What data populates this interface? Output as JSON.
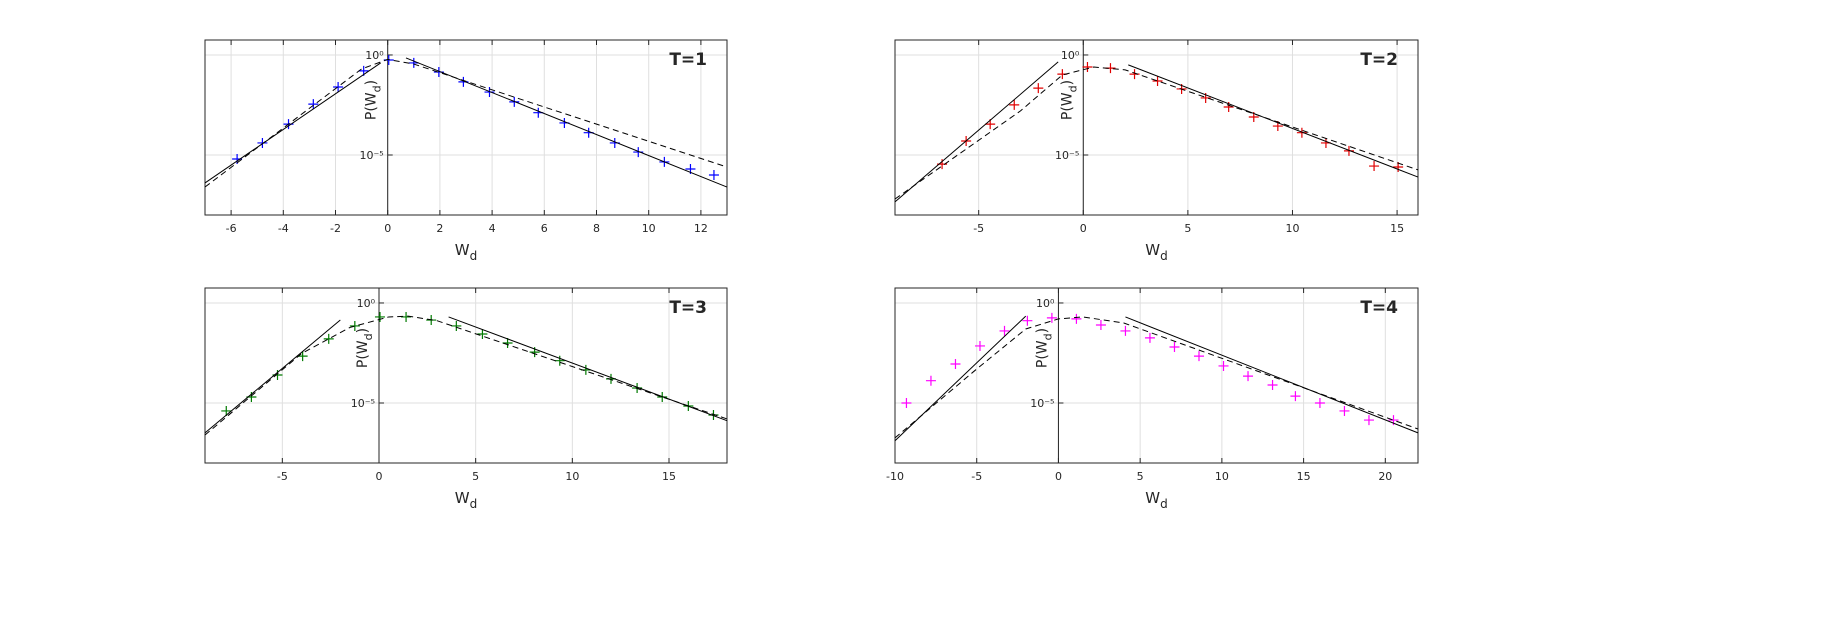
{
  "chart_data": [
    {
      "type": "line",
      "title": "T=1",
      "log_y": true,
      "grid": true,
      "xlabel": {
        "main": "W",
        "sub": "d"
      },
      "ylabel": {
        "pre": "P(W",
        "sub": "d",
        "post": ")"
      },
      "xlim": [
        -7,
        13
      ],
      "ylim": [
        1e-08,
        5.6
      ],
      "xticks": [
        -6,
        -4,
        -2,
        0,
        2,
        4,
        6,
        8,
        10,
        12
      ],
      "yticks": [
        {
          "value": 1,
          "label": "10⁰"
        },
        {
          "value": 1e-05,
          "label": "10⁻⁵"
        }
      ],
      "series": [
        {
          "style": "markers",
          "color": "#0000ff",
          "x": [
            -5.77,
            -4.8,
            -3.8,
            -2.85,
            -1.9,
            -0.92,
            0.04,
            1.0,
            1.96,
            2.9,
            3.9,
            4.85,
            5.77,
            6.77,
            7.7,
            8.7,
            9.6,
            10.6,
            11.6,
            12.5
          ],
          "values": [
            6.3e-06,
            4e-05,
            0.00035,
            0.0035,
            0.025,
            0.16,
            0.56,
            0.4,
            0.14,
            0.045,
            0.014,
            0.0045,
            0.0013,
            0.0004,
            0.00013,
            4e-05,
            1.4e-05,
            4.5e-06,
            2e-06,
            1e-06
          ]
        },
        {
          "style": "dashed",
          "color": "#000000",
          "x": [
            -7,
            -1,
            0,
            1,
            13
          ],
          "values": [
            2.5e-07,
            0.2,
            0.6,
            0.35,
            2.5e-06
          ]
        },
        {
          "style": "solid",
          "color": "#000000",
          "x": [
            -7,
            -0.27
          ],
          "values": [
            4e-07,
            0.4
          ]
        },
        {
          "style": "solid",
          "color": "#000000",
          "x": [
            0.7,
            13
          ],
          "values": [
            0.71,
            2.5e-07
          ]
        }
      ]
    },
    {
      "type": "line",
      "title": "T=2",
      "log_y": true,
      "grid": true,
      "xlabel": {
        "main": "W",
        "sub": "d"
      },
      "ylabel": {
        "pre": "P(W",
        "sub": "d",
        "post": ")"
      },
      "xlim": [
        -9,
        16
      ],
      "ylim": [
        1e-08,
        5.6
      ],
      "xticks": [
        -5,
        0,
        5,
        10,
        15
      ],
      "yticks": [
        {
          "value": 1,
          "label": "10⁰"
        },
        {
          "value": 1e-05,
          "label": "10⁻⁵"
        }
      ],
      "series": [
        {
          "style": "markers",
          "color": "#e00000",
          "x": [
            -6.75,
            -5.6,
            -4.45,
            -3.3,
            -2.15,
            -1.0,
            0.2,
            1.3,
            2.45,
            3.55,
            4.7,
            5.85,
            6.95,
            8.15,
            9.3,
            10.45,
            11.6,
            12.7,
            13.9,
            15.05
          ],
          "values": [
            3.5e-06,
            5e-05,
            0.00035,
            0.0032,
            0.022,
            0.11,
            0.25,
            0.22,
            0.11,
            0.05,
            0.02,
            0.0071,
            0.0025,
            0.00079,
            0.00028,
            0.00013,
            4e-05,
            1.6e-05,
            2.8e-06,
            2.5e-06
          ]
        },
        {
          "style": "dashed",
          "color": "#000000",
          "x": [
            -9,
            -3,
            -1,
            0.5,
            2,
            16
          ],
          "values": [
            6.3e-08,
            0.0016,
            0.1,
            0.25,
            0.18,
            1.8e-06
          ]
        },
        {
          "style": "solid",
          "color": "#000000",
          "x": [
            -9,
            -1.2
          ],
          "values": [
            4.5e-08,
            0.45
          ]
        },
        {
          "style": "solid",
          "color": "#000000",
          "x": [
            2.15,
            16
          ],
          "values": [
            0.32,
            7.9e-07
          ]
        }
      ]
    },
    {
      "type": "line",
      "title": "T=3",
      "log_y": true,
      "grid": true,
      "xlabel": {
        "main": "W",
        "sub": "d"
      },
      "ylabel": {
        "pre": "P(W",
        "sub": "d",
        "post": ")"
      },
      "xlim": [
        -9,
        18
      ],
      "ylim": [
        1e-08,
        5.6
      ],
      "xticks": [
        -5,
        0,
        5,
        10,
        15
      ],
      "yticks": [
        {
          "value": 1,
          "label": "10⁰"
        },
        {
          "value": 1e-05,
          "label": "10⁻⁵"
        }
      ],
      "series": [
        {
          "style": "markers",
          "color": "#007a00",
          "x": [
            -7.9,
            -6.6,
            -5.25,
            -3.95,
            -2.6,
            -1.25,
            0.05,
            1.4,
            2.7,
            4.0,
            5.35,
            6.65,
            8.05,
            9.35,
            10.7,
            12.0,
            13.35,
            14.65,
            16.0,
            17.3
          ],
          "values": [
            4e-06,
            2e-05,
            0.00025,
            0.0022,
            0.016,
            0.071,
            0.2,
            0.2,
            0.14,
            0.071,
            0.028,
            0.01,
            0.0035,
            0.0013,
            0.00045,
            0.00016,
            5.6e-05,
            2e-05,
            7.1e-06,
            2.5e-06
          ]
        },
        {
          "style": "dashed",
          "color": "#000000",
          "x": [
            -9,
            -4,
            -1.5,
            0.5,
            1.5,
            3,
            18
          ],
          "values": [
            2.5e-07,
            0.003,
            0.06,
            0.2,
            0.22,
            0.13,
            1.6e-06
          ]
        },
        {
          "style": "solid",
          "color": "#000000",
          "x": [
            -9,
            -2
          ],
          "values": [
            3.2e-07,
            0.14
          ]
        },
        {
          "style": "solid",
          "color": "#000000",
          "x": [
            3.6,
            18
          ],
          "values": [
            0.2,
            1.3e-06
          ]
        }
      ]
    },
    {
      "type": "line",
      "title": "T=4",
      "log_y": true,
      "grid": true,
      "xlabel": {
        "main": "W",
        "sub": "d"
      },
      "ylabel": {
        "pre": "P(W",
        "sub": "d",
        "post": ")"
      },
      "xlim": [
        -10,
        22
      ],
      "ylim": [
        1e-08,
        5.6
      ],
      "xticks": [
        -10,
        -5,
        0,
        5,
        10,
        15,
        20
      ],
      "yticks": [
        {
          "value": 1,
          "label": "10⁰"
        },
        {
          "value": 1e-05,
          "label": "10⁻⁵"
        }
      ],
      "series": [
        {
          "style": "markers",
          "color": "#ff00ff",
          "x": [
            -9.3,
            -7.8,
            -6.3,
            -4.8,
            -3.3,
            -1.9,
            -0.4,
            1.1,
            2.6,
            4.1,
            5.6,
            7.1,
            8.6,
            10.1,
            11.6,
            13.1,
            14.5,
            16.0,
            17.5,
            19.0,
            20.5
          ],
          "values": [
            1e-05,
            0.00013,
            0.00089,
            0.0071,
            0.04,
            0.13,
            0.18,
            0.16,
            0.079,
            0.04,
            0.018,
            0.0063,
            0.0022,
            0.00071,
            0.00022,
            7.9e-05,
            2.2e-05,
            1e-05,
            4e-06,
            1.4e-06,
            1.4e-06
          ]
        },
        {
          "style": "dashed",
          "color": "#000000",
          "x": [
            -10,
            -5,
            -2,
            0,
            1.5,
            4,
            22
          ],
          "values": [
            1.8e-07,
            0.0005,
            0.05,
            0.16,
            0.2,
            0.1,
            5e-07
          ]
        },
        {
          "style": "solid",
          "color": "#000000",
          "x": [
            -10,
            -2
          ],
          "values": [
            1.3e-07,
            0.22
          ]
        },
        {
          "style": "solid",
          "color": "#000000",
          "x": [
            4.1,
            22
          ],
          "values": [
            0.2,
            3.2e-07
          ]
        }
      ]
    }
  ]
}
